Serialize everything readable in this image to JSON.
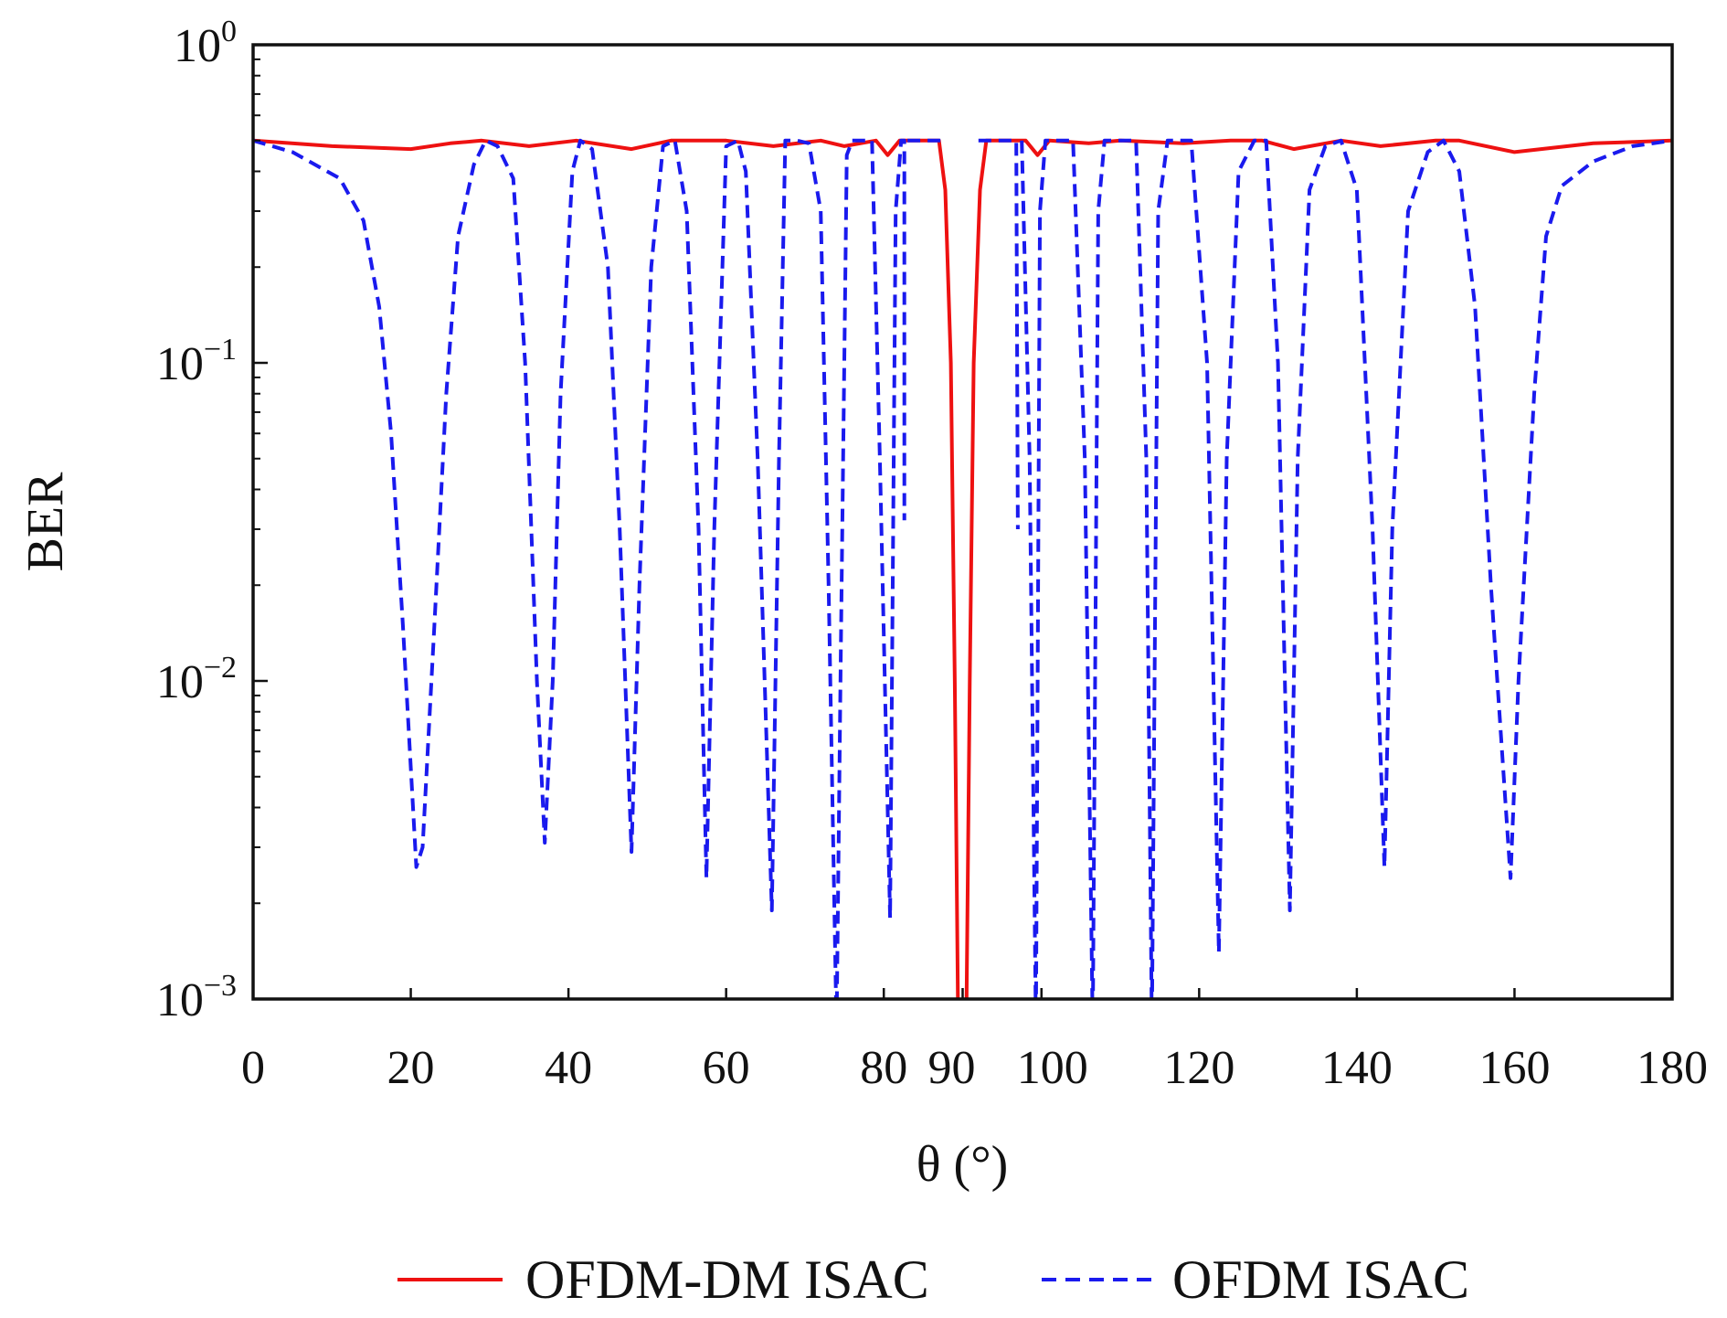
{
  "chart_data": {
    "type": "line",
    "title": "",
    "xlabel": "θ (°)",
    "ylabel": "BER",
    "xlim": [
      0,
      180
    ],
    "ylim": [
      0.001,
      1
    ],
    "yscale": "log",
    "grid": false,
    "legend_placement": "bottom-center",
    "xticks": [
      0,
      20,
      40,
      60,
      80,
      90,
      100,
      120,
      140,
      160,
      180
    ],
    "xtick_labels": [
      "0",
      "20",
      "40",
      "60",
      "80",
      "90",
      "100",
      "120",
      "140",
      "160",
      "180"
    ],
    "yticks": [
      {
        "value": 1,
        "base": "10",
        "exp": "0"
      },
      {
        "value": 0.1,
        "base": "10",
        "exp": "−1"
      },
      {
        "value": 0.01,
        "base": "10",
        "exp": "−2"
      },
      {
        "value": 0.001,
        "base": "10",
        "exp": "−3"
      }
    ],
    "series": [
      {
        "name": "OFDM-DM ISAC",
        "color": "#ee1111",
        "style": "solid",
        "points": [
          [
            0,
            0.5
          ],
          [
            10,
            0.48
          ],
          [
            20,
            0.47
          ],
          [
            25,
            0.49
          ],
          [
            29,
            0.5
          ],
          [
            35,
            0.48
          ],
          [
            41,
            0.5
          ],
          [
            48,
            0.47
          ],
          [
            53,
            0.5
          ],
          [
            60,
            0.5
          ],
          [
            66,
            0.48
          ],
          [
            72,
            0.5
          ],
          [
            75,
            0.48
          ],
          [
            79,
            0.5
          ],
          [
            80.5,
            0.45
          ],
          [
            82,
            0.5
          ],
          [
            87,
            0.5
          ],
          [
            87.8,
            0.35
          ],
          [
            88.5,
            0.1
          ],
          [
            89,
            0.01
          ],
          [
            89.4,
            0.001
          ],
          [
            89.6,
            0.0004
          ],
          [
            90.3,
            0.0004
          ],
          [
            90.5,
            0.001
          ],
          [
            90.9,
            0.01
          ],
          [
            91.4,
            0.1
          ],
          [
            92.2,
            0.35
          ],
          [
            93,
            0.5
          ],
          [
            98,
            0.5
          ],
          [
            99.5,
            0.45
          ],
          [
            101,
            0.5
          ],
          [
            106,
            0.49
          ],
          [
            110,
            0.5
          ],
          [
            118,
            0.49
          ],
          [
            124,
            0.5
          ],
          [
            128,
            0.5
          ],
          [
            132,
            0.47
          ],
          [
            138,
            0.5
          ],
          [
            143,
            0.48
          ],
          [
            150,
            0.5
          ],
          [
            153,
            0.5
          ],
          [
            160,
            0.46
          ],
          [
            170,
            0.49
          ],
          [
            180,
            0.5
          ]
        ]
      },
      {
        "name": "OFDM ISAC",
        "color": "#1a1aee",
        "style": "dashed",
        "points": [
          [
            0,
            0.5
          ],
          [
            5,
            0.46
          ],
          [
            11,
            0.38
          ],
          [
            14,
            0.28
          ],
          [
            16,
            0.15
          ],
          [
            17.5,
            0.06
          ],
          [
            19,
            0.015
          ],
          [
            20.7,
            0.0026
          ],
          [
            21.5,
            0.003
          ],
          [
            23,
            0.015
          ],
          [
            24.5,
            0.08
          ],
          [
            26,
            0.25
          ],
          [
            28,
            0.42
          ],
          [
            29.5,
            0.5
          ],
          [
            31,
            0.48
          ],
          [
            33,
            0.38
          ],
          [
            34.5,
            0.1
          ],
          [
            36,
            0.01
          ],
          [
            37,
            0.0031
          ],
          [
            38,
            0.01
          ],
          [
            39,
            0.08
          ],
          [
            40.5,
            0.4
          ],
          [
            41.5,
            0.5
          ],
          [
            43,
            0.47
          ],
          [
            45,
            0.2
          ],
          [
            46.5,
            0.03
          ],
          [
            48,
            0.0029
          ],
          [
            49,
            0.02
          ],
          [
            50.5,
            0.2
          ],
          [
            52,
            0.48
          ],
          [
            53.5,
            0.5
          ],
          [
            55,
            0.3
          ],
          [
            56.5,
            0.03
          ],
          [
            57.5,
            0.0024
          ],
          [
            58.5,
            0.03
          ],
          [
            60,
            0.48
          ],
          [
            61.5,
            0.5
          ],
          [
            62.5,
            0.4
          ],
          [
            64,
            0.05
          ],
          [
            65.8,
            0.0019
          ],
          [
            66.7,
            0.05
          ],
          [
            67.5,
            0.5
          ],
          [
            69,
            0.5
          ],
          [
            70.5,
            0.49
          ],
          [
            72,
            0.3
          ],
          [
            73,
            0.02
          ],
          [
            74,
            0.0008
          ],
          [
            74.5,
            0.01
          ],
          [
            75.3,
            0.45
          ],
          [
            76,
            0.5
          ],
          [
            78.5,
            0.5
          ],
          [
            79.5,
            0.05
          ],
          [
            80.8,
            0.0018
          ],
          [
            81.5,
            0.3
          ],
          [
            82.2,
            0.5
          ],
          [
            82.6,
            0.5
          ],
          [
            82.6,
            0.032
          ],
          null,
          [
            83,
            0.5
          ],
          [
            87.5,
            0.5
          ],
          null,
          [
            92,
            0.5
          ],
          [
            96.8,
            0.5
          ],
          [
            97,
            0.03
          ],
          null,
          [
            97.5,
            0.5
          ],
          [
            98.5,
            0.05
          ],
          [
            99.3,
            0.0008
          ],
          [
            99.8,
            0.3
          ],
          [
            100.5,
            0.5
          ],
          [
            104,
            0.5
          ],
          [
            105.5,
            0.05
          ],
          [
            106.5,
            0.0008
          ],
          [
            107.2,
            0.3
          ],
          [
            108,
            0.5
          ],
          [
            112,
            0.5
          ],
          [
            113.3,
            0.05
          ],
          [
            114,
            0.0008
          ],
          [
            114.8,
            0.3
          ],
          [
            116,
            0.5
          ],
          [
            119,
            0.5
          ],
          [
            121,
            0.1
          ],
          [
            122.5,
            0.0014
          ],
          [
            123.5,
            0.05
          ],
          [
            125,
            0.4
          ],
          [
            127,
            0.5
          ],
          [
            128.5,
            0.5
          ],
          [
            130,
            0.1
          ],
          [
            131.5,
            0.0019
          ],
          [
            132.5,
            0.05
          ],
          [
            134,
            0.35
          ],
          [
            136,
            0.48
          ],
          [
            138,
            0.5
          ],
          [
            140,
            0.35
          ],
          [
            142,
            0.03
          ],
          [
            143.5,
            0.0026
          ],
          [
            144.5,
            0.03
          ],
          [
            146.5,
            0.3
          ],
          [
            149,
            0.46
          ],
          [
            151,
            0.5
          ],
          [
            153,
            0.4
          ],
          [
            155,
            0.15
          ],
          [
            157,
            0.02
          ],
          [
            159.5,
            0.0024
          ],
          [
            160.5,
            0.01
          ],
          [
            162.5,
            0.08
          ],
          [
            164,
            0.25
          ],
          [
            166,
            0.36
          ],
          [
            170,
            0.43
          ],
          [
            175,
            0.48
          ],
          [
            180,
            0.5
          ]
        ]
      }
    ]
  }
}
